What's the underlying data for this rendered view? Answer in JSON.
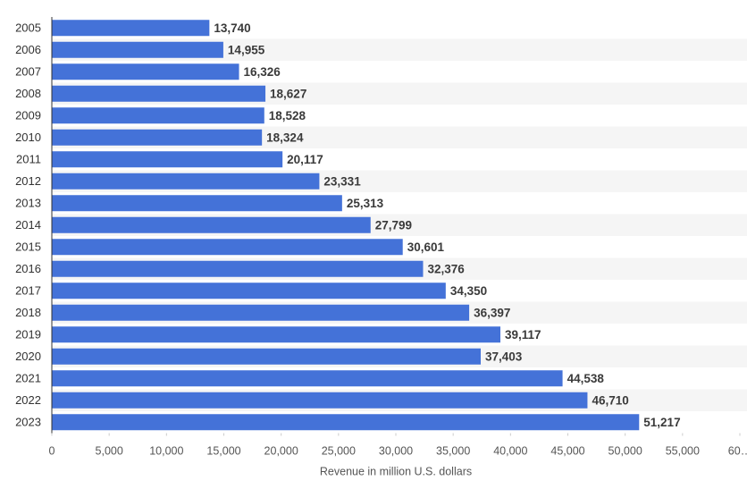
{
  "chart_data": {
    "type": "bar",
    "orientation": "horizontal",
    "x_label": "Revenue in million U.S. dollars",
    "categories": [
      "2005",
      "2006",
      "2007",
      "2008",
      "2009",
      "2010",
      "2011",
      "2012",
      "2013",
      "2014",
      "2015",
      "2016",
      "2017",
      "2018",
      "2019",
      "2020",
      "2021",
      "2022",
      "2023"
    ],
    "values": [
      13740,
      14955,
      16326,
      18627,
      18528,
      18324,
      20117,
      23331,
      25313,
      27799,
      30601,
      32376,
      34350,
      36397,
      39117,
      37403,
      44538,
      46710,
      51217
    ],
    "value_labels": [
      "13,740",
      "14,955",
      "16,326",
      "18,627",
      "18,528",
      "18,324",
      "20,117",
      "23,331",
      "25,313",
      "27,799",
      "30,601",
      "32,376",
      "34,350",
      "36,397",
      "39,117",
      "37,403",
      "44,538",
      "46,710",
      "51,217"
    ],
    "color": "#4472d8",
    "xlim": [
      0,
      60000
    ],
    "xticks": [
      0,
      {
        "value": 5000,
        "label": "5,000"
      },
      {
        "value": 10000,
        "label": "10,000"
      },
      {
        "value": 15000,
        "label": "15,000"
      },
      {
        "value": 20000,
        "label": "20,000"
      },
      {
        "value": 25000,
        "label": "25,000"
      },
      {
        "value": 30000,
        "label": "30,000"
      },
      {
        "value": 35000,
        "label": "35,000"
      },
      {
        "value": 40000,
        "label": "40,000"
      },
      {
        "value": 45000,
        "label": "45,000"
      },
      {
        "value": 50000,
        "label": "50,000"
      },
      {
        "value": 55000,
        "label": "55,000"
      },
      {
        "value": 60000,
        "label": "60…"
      }
    ]
  }
}
